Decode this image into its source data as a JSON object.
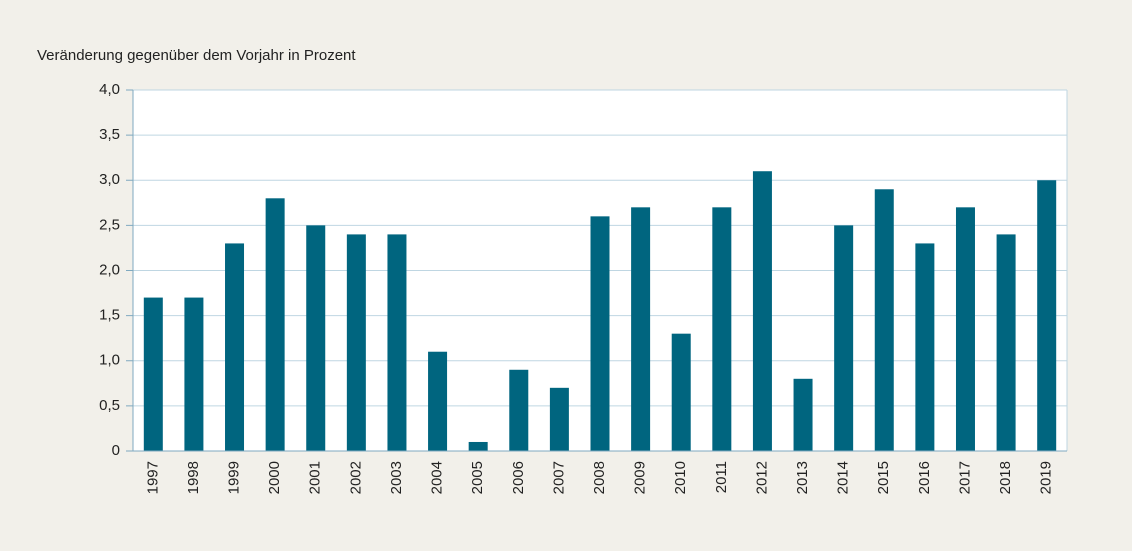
{
  "chart_data": {
    "type": "bar",
    "y_label": "Veränderung gegenüber dem Vorjahr in Prozent",
    "categories": [
      "1997",
      "1998",
      "1999",
      "2000",
      "2001",
      "2002",
      "2003",
      "2004",
      "2005",
      "2006",
      "2007",
      "2008",
      "2009",
      "2010",
      "2011",
      "2012",
      "2013",
      "2014",
      "2015",
      "2016",
      "2017",
      "2018",
      "2019"
    ],
    "values": [
      1.7,
      1.7,
      2.3,
      2.8,
      2.5,
      2.4,
      2.4,
      1.1,
      0.1,
      0.9,
      0.7,
      2.6,
      2.7,
      1.3,
      2.7,
      3.1,
      0.8,
      2.5,
      2.9,
      2.3,
      2.7,
      2.4,
      3.0
    ],
    "color": "#00657f",
    "ylim": [
      0,
      4
    ],
    "yticks": [
      0,
      {
        "value": 0.5,
        "label": "0,5"
      },
      {
        "value": 1,
        "label": "1,0"
      },
      {
        "value": 1.5,
        "label": "1,5"
      },
      {
        "value": 2,
        "label": "2,0"
      },
      {
        "value": 2.5,
        "label": "2,5"
      },
      {
        "value": 3,
        "label": "3,0"
      },
      {
        "value": 3.5,
        "label": "3,5"
      },
      {
        "value": 4,
        "label": "4,0"
      }
    ],
    "grid": true
  }
}
